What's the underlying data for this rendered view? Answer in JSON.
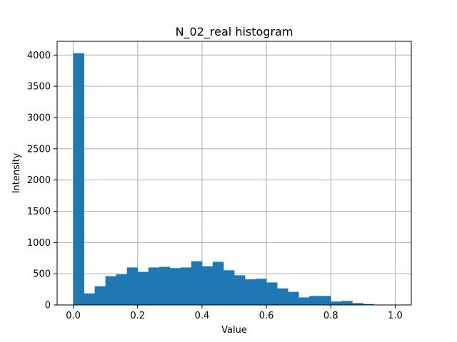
{
  "chart_data": {
    "type": "bar",
    "title": "N_02_real histogram",
    "xlabel": "Value",
    "ylabel": "Intensity",
    "xlim": [
      -0.05,
      1.05
    ],
    "ylim": [
      0,
      4220
    ],
    "grid": true,
    "bar_color": "#1f77b4",
    "bin_width": 0.0333,
    "bin_starts": [
      0.0,
      0.0333,
      0.0667,
      0.1,
      0.1333,
      0.1667,
      0.2,
      0.2333,
      0.2667,
      0.3,
      0.3333,
      0.3667,
      0.4,
      0.4333,
      0.4667,
      0.5,
      0.5333,
      0.5667,
      0.6,
      0.6333,
      0.6667,
      0.7,
      0.7333,
      0.7667,
      0.8,
      0.8333,
      0.8667,
      0.9,
      0.9333,
      0.9667
    ],
    "values": [
      4030,
      185,
      300,
      460,
      490,
      600,
      530,
      600,
      610,
      590,
      600,
      700,
      620,
      690,
      555,
      475,
      410,
      420,
      360,
      265,
      210,
      120,
      145,
      145,
      55,
      65,
      30,
      15,
      5,
      2
    ],
    "xticks": [
      0.0,
      0.2,
      0.4,
      0.6,
      0.8,
      1.0
    ],
    "xtick_labels": [
      "0.0",
      "0.2",
      "0.4",
      "0.6",
      "0.8",
      "1.0"
    ],
    "yticks": [
      0,
      500,
      1000,
      1500,
      2000,
      2500,
      3000,
      3500,
      4000
    ],
    "ytick_labels": [
      "0",
      "500",
      "1000",
      "1500",
      "2000",
      "2500",
      "3000",
      "3500",
      "4000"
    ]
  }
}
